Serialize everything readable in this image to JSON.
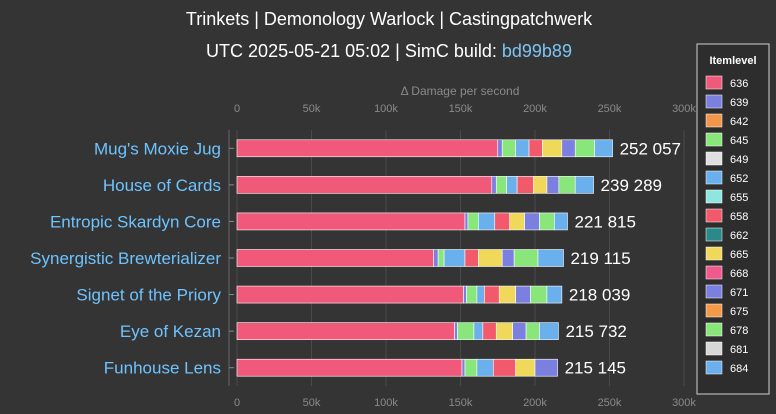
{
  "chart_data": {
    "type": "bar",
    "orientation": "horizontal",
    "stacked": true,
    "title": "Trinkets | Demonology Warlock | Castingpatchwerk",
    "subtitle_prefix": "UTC 2025-05-21 05:02 | SimC build: ",
    "subtitle_link": "bd99b89",
    "xlabel": "Δ Damage per second",
    "xlim": [
      0,
      300000
    ],
    "xticks": [
      0,
      50000,
      100000,
      150000,
      200000,
      250000,
      300000
    ],
    "xtick_labels": [
      "0",
      "50k",
      "100k",
      "150k",
      "200k",
      "250k",
      "300k"
    ],
    "grid": true,
    "legend": {
      "title": "Itemlevel",
      "position": "right",
      "entries": [
        "636",
        "639",
        "642",
        "645",
        "649",
        "652",
        "655",
        "658",
        "662",
        "665",
        "668",
        "671",
        "675",
        "678",
        "681",
        "684"
      ]
    },
    "series_colors": {
      "636": "#f0597a",
      "639": "#7b7fe0",
      "642": "#f2974a",
      "645": "#88e67a",
      "649": "#e0e0e0",
      "652": "#6ab0ec",
      "655": "#8fe6e0",
      "658": "#f2596a",
      "662": "#2a8a8a",
      "665": "#f0d85a",
      "668": "#f0598c",
      "671": "#7b7fe0",
      "675": "#f29a4a",
      "678": "#88e67a",
      "681": "#d8d8d8",
      "684": "#6ab0ec"
    },
    "categories": [
      "Mug's Moxie Jug",
      "House of Cards",
      "Entropic Skardyn Core",
      "Synergistic Brewterializer",
      "Signet of the Priory",
      "Eye of Kezan",
      "Funhouse Lens"
    ],
    "totals": [
      252057,
      239289,
      221815,
      219115,
      218039,
      215732,
      215145
    ],
    "total_labels": [
      "252 057",
      "239 289",
      "221 815",
      "219 115",
      "218 039",
      "215 732",
      "215 145"
    ],
    "segments": [
      [
        {
          "ilvl": "636",
          "value": 175000
        },
        {
          "ilvl": "639",
          "value": 3000
        },
        {
          "ilvl": "645",
          "value": 9000
        },
        {
          "ilvl": "652",
          "value": 9000
        },
        {
          "ilvl": "658",
          "value": 9000
        },
        {
          "ilvl": "665",
          "value": 13000
        },
        {
          "ilvl": "671",
          "value": 9000
        },
        {
          "ilvl": "678",
          "value": 13000
        },
        {
          "ilvl": "684",
          "value": 12057
        }
      ],
      [
        {
          "ilvl": "636",
          "value": 171000
        },
        {
          "ilvl": "639",
          "value": 3000
        },
        {
          "ilvl": "645",
          "value": 7000
        },
        {
          "ilvl": "652",
          "value": 7000
        },
        {
          "ilvl": "658",
          "value": 11000
        },
        {
          "ilvl": "665",
          "value": 9000
        },
        {
          "ilvl": "671",
          "value": 8000
        },
        {
          "ilvl": "678",
          "value": 11000
        },
        {
          "ilvl": "684",
          "value": 12289
        }
      ],
      [
        {
          "ilvl": "636",
          "value": 153000
        },
        {
          "ilvl": "639",
          "value": 2000
        },
        {
          "ilvl": "645",
          "value": 7000
        },
        {
          "ilvl": "652",
          "value": 11000
        },
        {
          "ilvl": "658",
          "value": 10000
        },
        {
          "ilvl": "665",
          "value": 10000
        },
        {
          "ilvl": "671",
          "value": 10000
        },
        {
          "ilvl": "678",
          "value": 10000
        },
        {
          "ilvl": "684",
          "value": 8815
        }
      ],
      [
        {
          "ilvl": "636",
          "value": 132000
        },
        {
          "ilvl": "639",
          "value": 3000
        },
        {
          "ilvl": "645",
          "value": 4000
        },
        {
          "ilvl": "652",
          "value": 14000
        },
        {
          "ilvl": "658",
          "value": 9000
        },
        {
          "ilvl": "665",
          "value": 16000
        },
        {
          "ilvl": "671",
          "value": 8000
        },
        {
          "ilvl": "678",
          "value": 16000
        },
        {
          "ilvl": "684",
          "value": 17115
        }
      ],
      [
        {
          "ilvl": "636",
          "value": 152000
        },
        {
          "ilvl": "639",
          "value": 2000
        },
        {
          "ilvl": "645",
          "value": 7000
        },
        {
          "ilvl": "652",
          "value": 5000
        },
        {
          "ilvl": "658",
          "value": 10000
        },
        {
          "ilvl": "665",
          "value": 11000
        },
        {
          "ilvl": "671",
          "value": 10000
        },
        {
          "ilvl": "678",
          "value": 11000
        },
        {
          "ilvl": "684",
          "value": 10039
        }
      ],
      [
        {
          "ilvl": "636",
          "value": 146000
        },
        {
          "ilvl": "639",
          "value": 2000
        },
        {
          "ilvl": "645",
          "value": 11000
        },
        {
          "ilvl": "652",
          "value": 6000
        },
        {
          "ilvl": "658",
          "value": 9000
        },
        {
          "ilvl": "665",
          "value": 11000
        },
        {
          "ilvl": "671",
          "value": 9000
        },
        {
          "ilvl": "678",
          "value": 9000
        },
        {
          "ilvl": "684",
          "value": 12732
        }
      ],
      [
        {
          "ilvl": "636",
          "value": 151000
        },
        {
          "ilvl": "639",
          "value": 2000
        },
        {
          "ilvl": "645",
          "value": 8000
        },
        {
          "ilvl": "652",
          "value": 11000
        },
        {
          "ilvl": "658",
          "value": 15000
        },
        {
          "ilvl": "665",
          "value": 13000
        },
        {
          "ilvl": "671",
          "value": 15145
        }
      ]
    ]
  }
}
